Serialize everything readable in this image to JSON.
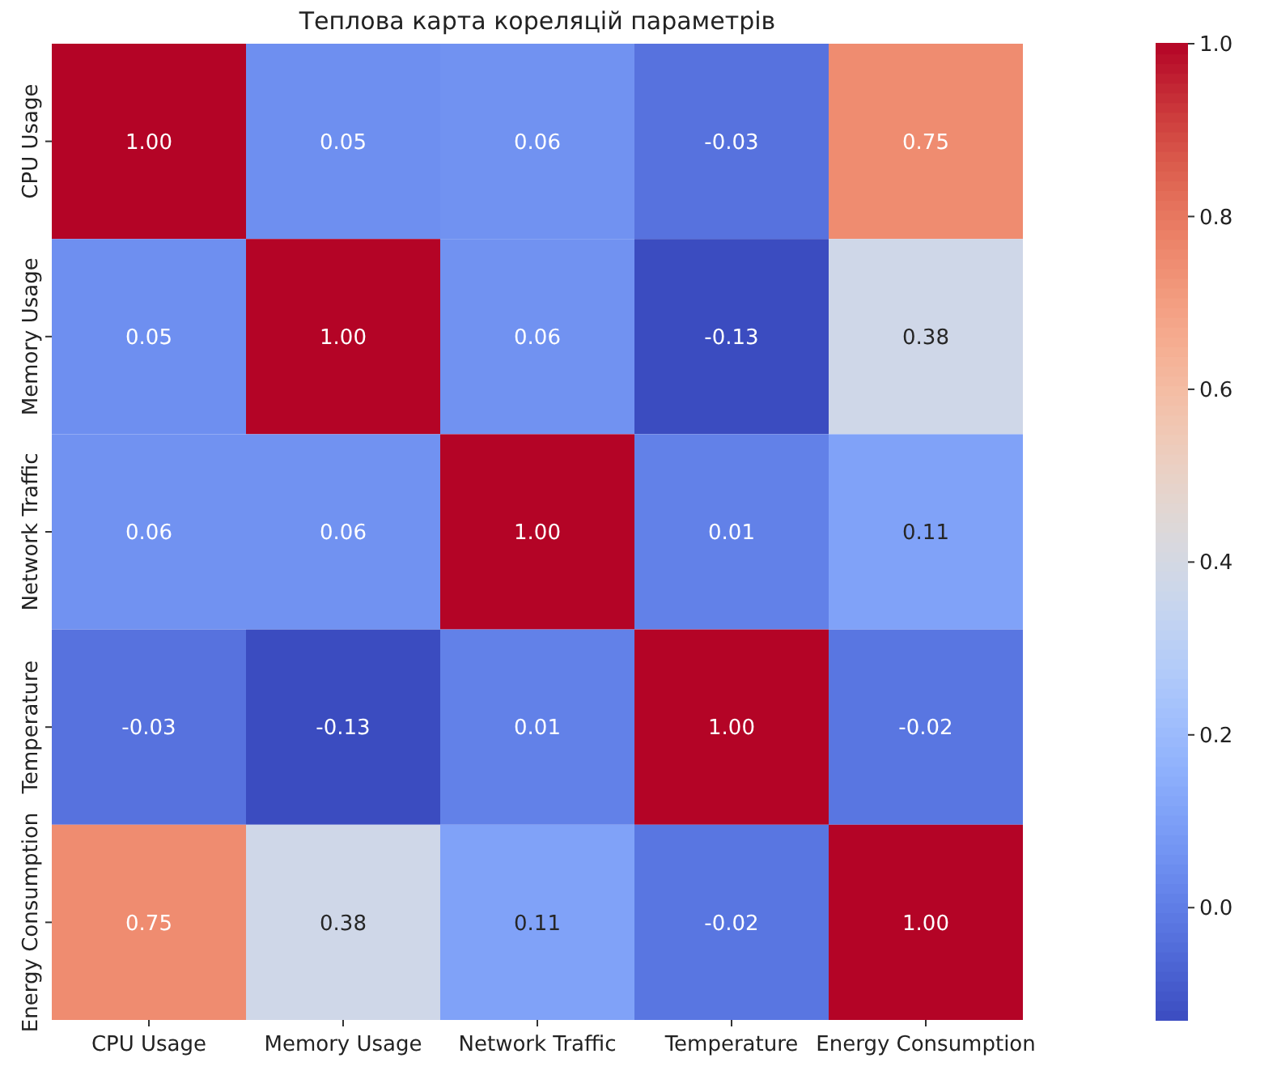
{
  "chart_data": {
    "type": "heatmap",
    "title": "Теплова карта кореляцій параметрів",
    "categories": [
      "CPU Usage",
      "Memory Usage",
      "Network Traffic",
      "Temperature",
      "Energy Consumption"
    ],
    "y_categories": [
      "CPU Usage",
      "Memory Usage",
      "Network Traffic",
      "Temperature",
      "Energy Consumption"
    ],
    "cells": [
      [
        1.0,
        0.05,
        0.06,
        -0.03,
        0.75
      ],
      [
        0.05,
        1.0,
        0.06,
        -0.13,
        0.38
      ],
      [
        0.06,
        0.06,
        1.0,
        0.01,
        0.11
      ],
      [
        -0.03,
        -0.13,
        0.01,
        1.0,
        -0.02
      ],
      [
        0.75,
        0.38,
        0.11,
        -0.02,
        1.0
      ]
    ],
    "cell_labels": [
      [
        "1.00",
        "0.05",
        "0.06",
        "-0.03",
        "0.75"
      ],
      [
        "0.05",
        "1.00",
        "0.06",
        "-0.13",
        "0.38"
      ],
      [
        "0.06",
        "0.06",
        "1.00",
        "0.01",
        "0.11"
      ],
      [
        "-0.03",
        "-0.13",
        "0.01",
        "1.00",
        "-0.02"
      ],
      [
        "0.75",
        "0.38",
        "0.11",
        "-0.02",
        "1.00"
      ]
    ],
    "clim": [
      -0.13,
      1.0
    ],
    "cticks": [
      {
        "value": 0,
        "label": "0.0"
      },
      {
        "value": 0.2,
        "label": "0.2"
      },
      {
        "value": 0.4,
        "label": "0.4"
      },
      {
        "value": 0.6,
        "label": "0.6"
      },
      {
        "value": 0.8,
        "label": "0.8"
      },
      {
        "value": 1,
        "label": "1.0"
      }
    ]
  }
}
